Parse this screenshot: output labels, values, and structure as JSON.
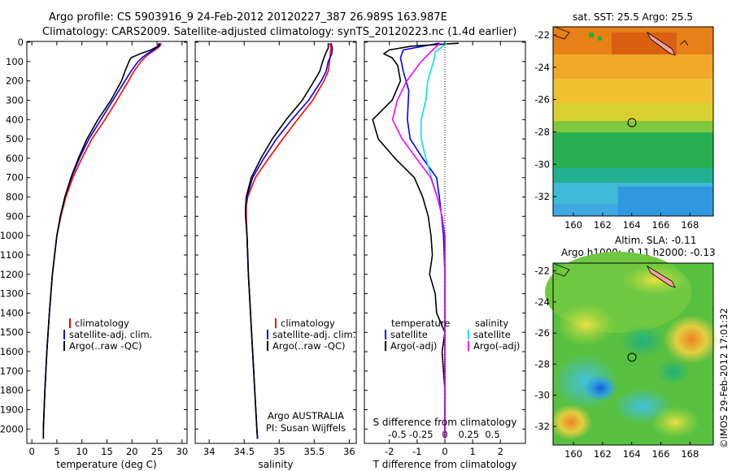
{
  "header": {
    "line1": "Argo profile: CS 5903916_9 24-Feb-2012 20120227_387 26.989S 163.987E",
    "line2": "Climatology: CARS2009. Satellite-adjusted climatology: synTS_20120223.nc (1.4d earlier)"
  },
  "colors": {
    "climatology": "#ff0000",
    "satellite": "#0000ff",
    "argo": "#000000",
    "s_satellite": "#00e5e5",
    "s_argo": "#ff00ff"
  },
  "chart_data": [
    {
      "type": "line",
      "id": "temperature",
      "xlabel": "temperature (deg C)",
      "xlim": [
        -1,
        31
      ],
      "ylim": [
        2070,
        0
      ],
      "xticks": [
        0,
        5,
        10,
        15,
        20,
        25,
        30
      ],
      "yticks": [
        0,
        100,
        200,
        300,
        400,
        500,
        600,
        700,
        800,
        900,
        1000,
        1100,
        1200,
        1300,
        1400,
        1500,
        1600,
        1700,
        1800,
        1900,
        2000
      ],
      "legend": [
        "climatology",
        "satellite-adj. clim.",
        "Argo(..raw -QC)"
      ],
      "series": [
        {
          "name": "climatology",
          "depth": [
            5,
            20,
            40,
            60,
            80,
            100,
            150,
            200,
            300,
            400,
            500,
            600,
            700,
            800,
            900,
            1000,
            1200,
            1400,
            1600,
            1800,
            2000,
            2050
          ],
          "values": [
            25.8,
            25.6,
            24.6,
            23.4,
            22.5,
            21.8,
            20.4,
            19.3,
            17.0,
            14.6,
            12.0,
            10.0,
            8.2,
            6.8,
            5.8,
            5.0,
            4.1,
            3.5,
            3.0,
            2.6,
            2.3,
            2.3
          ]
        },
        {
          "name": "satellite-adj. clim.",
          "depth": [
            5,
            20,
            40,
            60,
            80,
            100,
            150,
            200,
            300,
            400,
            500,
            600,
            700,
            800,
            900,
            1000,
            1200,
            1400,
            1600,
            1800,
            2000,
            2050
          ],
          "values": [
            25.6,
            25.4,
            24.3,
            23.0,
            22.0,
            21.2,
            19.8,
            18.6,
            16.2,
            13.8,
            11.4,
            9.5,
            7.9,
            6.6,
            5.7,
            5.0,
            4.1,
            3.5,
            3.0,
            2.6,
            2.3,
            2.3
          ]
        },
        {
          "name": "Argo(..raw -QC)",
          "depth": [
            5,
            20,
            40,
            60,
            80,
            100,
            150,
            200,
            300,
            400,
            500,
            600,
            700,
            800,
            900,
            1000,
            1200,
            1400,
            1600,
            1800,
            2000,
            2050
          ],
          "values": [
            25.4,
            25.2,
            23.8,
            21.6,
            19.8,
            19.4,
            18.6,
            17.9,
            15.8,
            13.2,
            11.0,
            9.3,
            7.8,
            6.6,
            5.7,
            5.0,
            4.1,
            3.5,
            3.0,
            2.6,
            2.3,
            2.3
          ]
        }
      ]
    },
    {
      "type": "line",
      "id": "salinity",
      "xlabel": "salinity",
      "xlim": [
        33.8,
        36.1
      ],
      "ylim": [
        2070,
        0
      ],
      "xticks": [
        34,
        34.5,
        35,
        35.5,
        36
      ],
      "legend": [
        "climatology",
        "satellite-adj. clim.",
        "Argo(..raw -QC)"
      ],
      "annotation": [
        "Argo AUSTRALIA",
        "PI: Susan Wijffels"
      ],
      "series": [
        {
          "name": "climatology",
          "depth": [
            5,
            30,
            60,
            100,
            150,
            200,
            300,
            400,
            500,
            600,
            700,
            800,
            850,
            900,
            1000,
            1200,
            1400,
            1600,
            1800,
            2000,
            2050
          ],
          "values": [
            35.72,
            35.74,
            35.73,
            35.72,
            35.7,
            35.64,
            35.48,
            35.26,
            35.05,
            34.85,
            34.66,
            34.55,
            34.53,
            34.53,
            34.54,
            34.56,
            34.59,
            34.62,
            34.65,
            34.68,
            34.69
          ]
        },
        {
          "name": "satellite-adj. clim.",
          "depth": [
            5,
            30,
            60,
            100,
            150,
            200,
            300,
            400,
            500,
            600,
            700,
            800,
            850,
            900,
            1000,
            1200,
            1400,
            1600,
            1800,
            2000,
            2050
          ],
          "values": [
            35.74,
            35.76,
            35.75,
            35.7,
            35.67,
            35.6,
            35.42,
            35.18,
            34.96,
            34.78,
            34.62,
            34.54,
            34.52,
            34.52,
            34.54,
            34.56,
            34.59,
            34.62,
            34.65,
            34.68,
            34.69
          ]
        },
        {
          "name": "Argo(..raw -QC)",
          "depth": [
            5,
            30,
            60,
            100,
            150,
            200,
            300,
            400,
            500,
            600,
            700,
            800,
            850,
            900,
            1000,
            1200,
            1400,
            1600,
            1800,
            2000,
            2050
          ],
          "values": [
            35.7,
            35.7,
            35.66,
            35.62,
            35.58,
            35.5,
            35.33,
            35.1,
            34.9,
            34.74,
            34.6,
            34.53,
            34.52,
            34.52,
            34.54,
            34.56,
            34.59,
            34.62,
            34.65,
            34.68,
            34.69
          ]
        }
      ]
    },
    {
      "type": "line",
      "id": "difference",
      "xlabel": "T difference from climatology",
      "xlabel_top": "S difference from climatology",
      "xlim": [
        -2.9,
        2.9
      ],
      "ylim": [
        2070,
        0
      ],
      "xticks_T": [
        -2,
        -1,
        0,
        1,
        2
      ],
      "xticks_S": [
        "-0.5",
        "-0.25",
        "0",
        "0.25",
        "0.5"
      ],
      "legend_temperature": [
        "temperature",
        "satellite",
        "Argo(-adj)"
      ],
      "legend_salinity": [
        "salinity",
        "satellite",
        "Argo(-adj)"
      ],
      "series": [
        {
          "name": "satellite",
          "group": "temperature",
          "depth": [
            5,
            40,
            80,
            150,
            250,
            400,
            500,
            600,
            700,
            800,
            900,
            1000,
            1200,
            1400,
            1600,
            1800,
            2000,
            2050
          ],
          "values": [
            -0.2,
            -1.5,
            -1.6,
            -1.5,
            -1.3,
            -1.35,
            -1.25,
            -0.8,
            -0.3,
            -0.2,
            -0.12,
            -0.05,
            0,
            0,
            0,
            0,
            0,
            0
          ]
        },
        {
          "name": "Argo(-adj)",
          "group": "temperature",
          "depth": [
            5,
            20,
            40,
            60,
            80,
            120,
            200,
            300,
            400,
            500,
            600,
            700,
            800,
            900,
            1000,
            1100,
            1200,
            1300,
            1400,
            1500,
            1600,
            1800,
            2000,
            2050
          ],
          "values": [
            0.5,
            -1.2,
            -2.0,
            -2.2,
            -1.9,
            -1.7,
            -1.6,
            -1.9,
            -2.6,
            -2.4,
            -1.8,
            -1.1,
            -0.8,
            -0.6,
            -0.5,
            -0.45,
            -0.55,
            -0.35,
            -0.3,
            0,
            -0.1,
            0,
            0,
            0
          ]
        },
        {
          "name": "satellite",
          "group": "salinity",
          "depth": [
            5,
            50,
            100,
            200,
            300,
            400,
            500,
            600,
            700,
            800,
            900,
            1000,
            1200,
            1500,
            2000,
            2050
          ],
          "values": [
            0.02,
            -0.1,
            -0.12,
            -0.18,
            -0.2,
            -0.25,
            -0.25,
            -0.2,
            -0.14,
            -0.08,
            -0.03,
            0,
            0,
            0,
            0,
            0
          ]
        },
        {
          "name": "Argo(-adj)",
          "group": "salinity",
          "depth": [
            5,
            50,
            100,
            200,
            300,
            400,
            500,
            600,
            700,
            800,
            900,
            1000,
            1200,
            1500,
            2000,
            2050
          ],
          "values": [
            -0.05,
            -0.15,
            -0.25,
            -0.4,
            -0.5,
            -0.55,
            -0.45,
            -0.3,
            -0.15,
            -0.08,
            -0.03,
            0,
            0,
            0,
            0,
            0
          ]
        }
      ]
    }
  ],
  "maps": [
    {
      "title": "sat. SST: 25.5  Argo: 25.5",
      "xticks": [
        "160",
        "162",
        "164",
        "166",
        "168"
      ],
      "yticks": [
        "-22",
        "-24",
        "-26",
        "-28",
        "-30",
        "-32"
      ]
    },
    {
      "title_line1": "Altim. SLA: -0.11",
      "title_line2": "Argo h1000: -0.11  h2000: -0.13",
      "xticks": [
        "160",
        "162",
        "164",
        "166",
        "168"
      ],
      "yticks": [
        "-22",
        "-24",
        "-26",
        "-28",
        "-30",
        "-32"
      ]
    }
  ],
  "footer_vertical": "©IMOS 29-Feb-2012 17:01:32"
}
